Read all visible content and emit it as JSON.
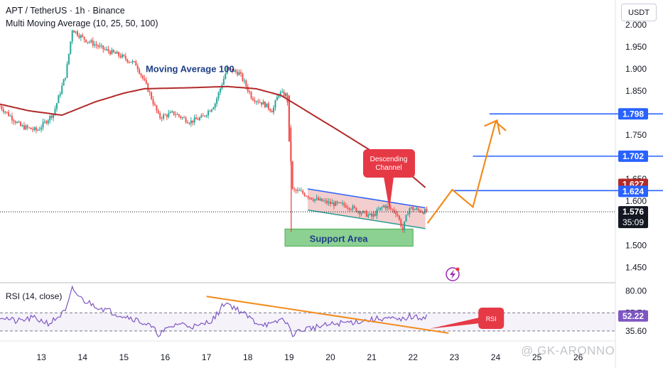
{
  "header": {
    "symbol_line": "APT / TetherUS · 1h · Binance",
    "indicator_line": "Multi Moving Average (10, 25, 50, 100)"
  },
  "currency_button": "USDT",
  "rsi_header": "RSI (14, close)",
  "watermark": "@ GK-ARONNO",
  "colors": {
    "up": "#26a69a",
    "down": "#ef5350",
    "ma100": "#b22a2a",
    "ma_short": "#7a0f0f",
    "rsi_line": "#7e57c2",
    "blue_level": "#2962ff",
    "orange": "#f28c1e",
    "channel_border": "#2962ff",
    "channel_fill": "#e9a6a6",
    "support_fill": "#78c87f",
    "tag_red": "#e63946"
  },
  "chart_data": {
    "type": "candlestick",
    "symbol": "APT / TetherUS",
    "timeframe": "1h",
    "exchange": "Binance",
    "x_ticks": [
      "13",
      "14",
      "15",
      "16",
      "17",
      "18",
      "19",
      "20",
      "21",
      "22",
      "23",
      "24",
      "25",
      "26"
    ],
    "x_tick_days": [
      13,
      14,
      15,
      16,
      17,
      18,
      19,
      20,
      21,
      22,
      23,
      24,
      25,
      26
    ],
    "x_range": [
      12.0,
      26.9
    ],
    "price_axis": {
      "ticks": [
        "2.000",
        "1.950",
        "1.900",
        "1.850",
        "1.800",
        "1.750",
        "1.650",
        "1.600",
        "1.550",
        "1.500",
        "1.450"
      ],
      "tick_values": [
        2.0,
        1.95,
        1.9,
        1.85,
        1.8,
        1.75,
        1.65,
        1.6,
        1.55,
        1.5,
        1.45
      ],
      "range": [
        1.42,
        2.04
      ]
    },
    "price_series_knots": [
      [
        12.0,
        1.815
      ],
      [
        12.5,
        1.77
      ],
      [
        12.9,
        1.76
      ],
      [
        13.3,
        1.8
      ],
      [
        13.6,
        1.89
      ],
      [
        13.75,
        1.99
      ],
      [
        14.0,
        1.97
      ],
      [
        14.5,
        1.945
      ],
      [
        14.9,
        1.93
      ],
      [
        15.3,
        1.91
      ],
      [
        15.6,
        1.85
      ],
      [
        15.85,
        1.79
      ],
      [
        16.2,
        1.8
      ],
      [
        16.6,
        1.78
      ],
      [
        16.9,
        1.79
      ],
      [
        17.2,
        1.82
      ],
      [
        17.5,
        1.9
      ],
      [
        17.8,
        1.89
      ],
      [
        18.1,
        1.835
      ],
      [
        18.4,
        1.82
      ],
      [
        18.6,
        1.805
      ],
      [
        18.75,
        1.845
      ],
      [
        18.95,
        1.84
      ],
      [
        19.02,
        1.73
      ],
      [
        19.08,
        1.625
      ],
      [
        19.3,
        1.62
      ],
      [
        19.6,
        1.605
      ],
      [
        20.0,
        1.595
      ],
      [
        20.4,
        1.59
      ],
      [
        20.75,
        1.575
      ],
      [
        21.0,
        1.565
      ],
      [
        21.3,
        1.59
      ],
      [
        21.6,
        1.575
      ],
      [
        21.75,
        1.535
      ],
      [
        21.9,
        1.585
      ],
      [
        22.1,
        1.58
      ],
      [
        22.35,
        1.576
      ]
    ],
    "moving_average_100": [
      [
        12.0,
        1.82
      ],
      [
        12.7,
        1.805
      ],
      [
        13.5,
        1.795
      ],
      [
        14.3,
        1.825
      ],
      [
        15.0,
        1.845
      ],
      [
        15.5,
        1.855
      ],
      [
        16.5,
        1.857
      ],
      [
        17.5,
        1.86
      ],
      [
        18.2,
        1.855
      ],
      [
        18.8,
        1.84
      ],
      [
        19.5,
        1.8
      ],
      [
        20.2,
        1.76
      ],
      [
        20.8,
        1.725
      ],
      [
        21.5,
        1.685
      ],
      [
        22.0,
        1.655
      ],
      [
        22.35,
        1.627
      ]
    ],
    "current_price": {
      "value": "1.576",
      "countdown": "35:09"
    },
    "price_labels": [
      {
        "value": 1.798,
        "text": "1.798",
        "kind": "resistance"
      },
      {
        "value": 1.702,
        "text": "1.702",
        "kind": "resistance"
      },
      {
        "value": 1.627,
        "text": "1.627",
        "kind": "moving-average"
      },
      {
        "value": 1.624,
        "text": "1.624",
        "kind": "resistance"
      }
    ],
    "horizontal_levels": [
      {
        "value": 1.798,
        "from_day": 23.85,
        "to_day": 25.7
      },
      {
        "value": 1.702,
        "from_day": 23.45,
        "to_day": 25.7
      },
      {
        "value": 1.624,
        "from_day": 22.95,
        "to_day": 25.7
      }
    ],
    "descending_channel": {
      "label": "Descending Channel",
      "upper": [
        [
          19.45,
          1.628
        ],
        [
          22.3,
          1.585
        ]
      ],
      "lower": [
        [
          19.45,
          1.58
        ],
        [
          22.3,
          1.538
        ]
      ]
    },
    "support_area": {
      "label": "Support Area",
      "from_day": 18.9,
      "to_day": 22.0,
      "high": 1.537,
      "low": 1.498
    },
    "projection": [
      [
        22.35,
        1.55
      ],
      [
        22.95,
        1.626
      ],
      [
        23.45,
        1.587
      ],
      [
        24.0,
        1.78
      ],
      [
        24.25,
        1.76
      ]
    ],
    "annotations": [
      {
        "text": "Moving Average 100",
        "day": 16.6,
        "price": 1.893
      },
      {
        "text": "Support Area",
        "day": 20.2,
        "price": 1.508
      }
    ],
    "rsi": {
      "period": 14,
      "source": "close",
      "current": "52.22",
      "levels": [
        "80.00",
        "55.71",
        "35.60"
      ],
      "level_values": [
        80.0,
        55.71,
        35.6
      ],
      "range": [
        26,
        86
      ],
      "series_knots": [
        [
          12.0,
          52
        ],
        [
          12.4,
          46
        ],
        [
          12.8,
          50
        ],
        [
          13.2,
          44
        ],
        [
          13.6,
          58
        ],
        [
          13.75,
          82
        ],
        [
          14.0,
          70
        ],
        [
          14.4,
          62
        ],
        [
          14.8,
          55
        ],
        [
          15.2,
          50
        ],
        [
          15.6,
          42
        ],
        [
          15.85,
          32
        ],
        [
          16.3,
          44
        ],
        [
          16.8,
          40
        ],
        [
          17.2,
          50
        ],
        [
          17.45,
          68
        ],
        [
          17.8,
          58
        ],
        [
          18.2,
          45
        ],
        [
          18.6,
          42
        ],
        [
          18.8,
          49
        ],
        [
          18.95,
          46
        ],
        [
          19.05,
          32
        ],
        [
          19.4,
          38
        ],
        [
          19.8,
          41
        ],
        [
          20.2,
          44
        ],
        [
          20.6,
          46
        ],
        [
          21.0,
          48
        ],
        [
          21.3,
          50
        ],
        [
          21.7,
          47
        ],
        [
          21.9,
          52
        ],
        [
          22.1,
          50
        ],
        [
          22.35,
          52.22
        ]
      ],
      "trendline": [
        [
          17.0,
          74
        ],
        [
          22.0,
          35.6
        ]
      ],
      "projection_arrow": [
        [
          22.4,
          38
        ],
        [
          23.6,
          48
        ]
      ],
      "tag": "RSI"
    }
  }
}
